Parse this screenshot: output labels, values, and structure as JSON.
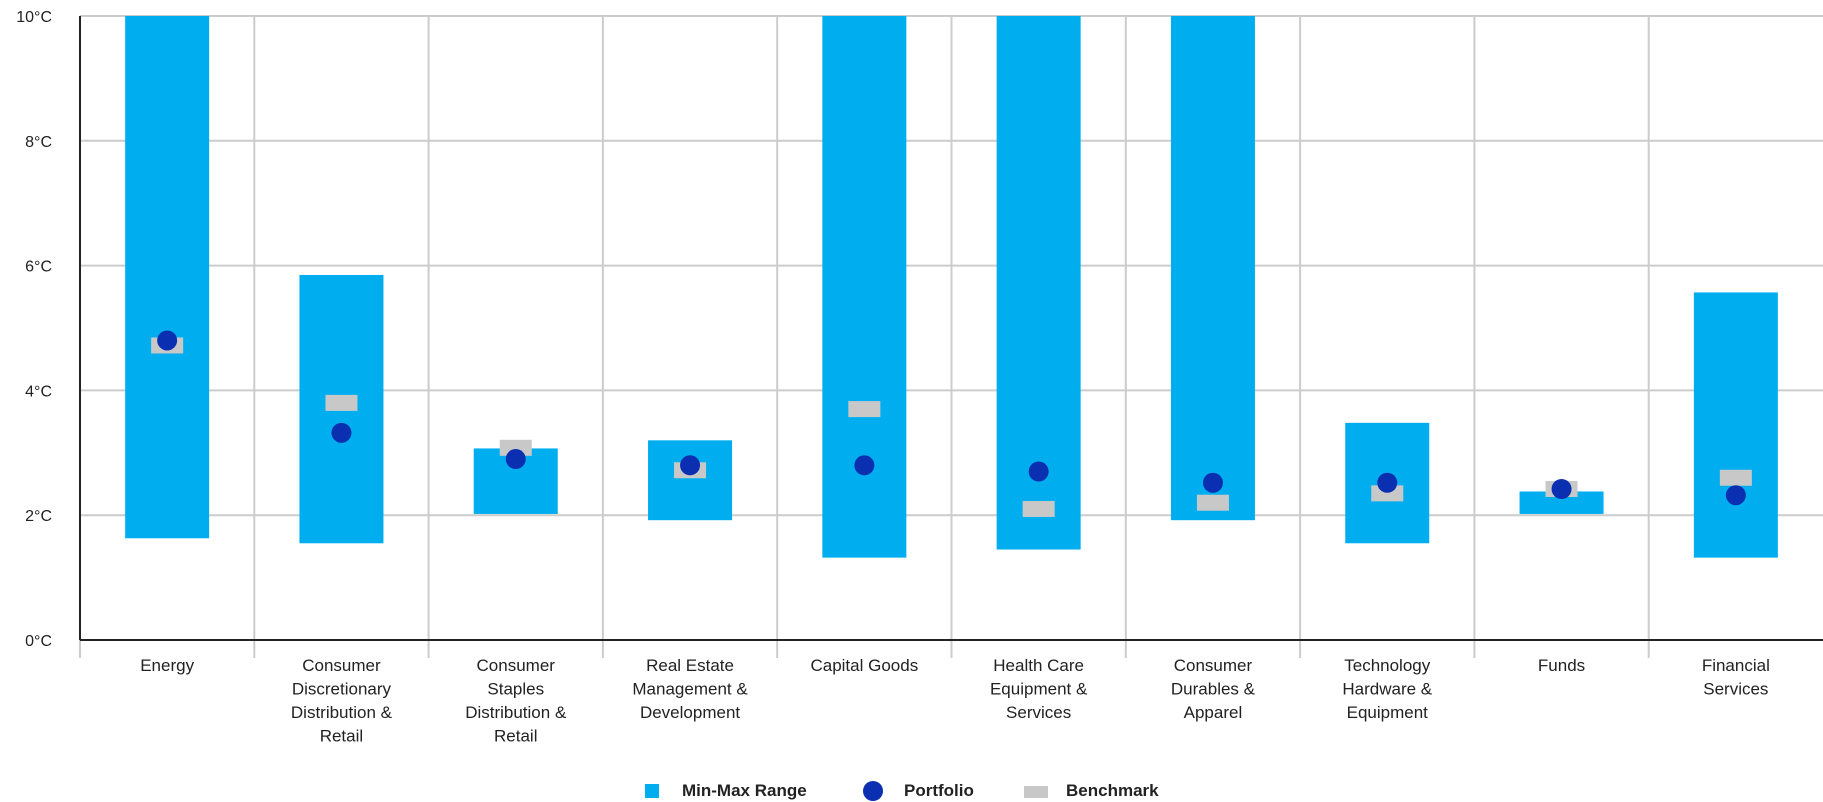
{
  "chart_data": {
    "type": "bar",
    "title": "",
    "xlabel": "",
    "ylabel": "",
    "ylim": [
      0,
      10
    ],
    "yticks": [
      "0°C",
      "2°C",
      "4°C",
      "6°C",
      "8°C",
      "10°C"
    ],
    "ytick_values": [
      0,
      2,
      4,
      6,
      8,
      10
    ],
    "grid": true,
    "legend_placement": "bottom-center",
    "categories": [
      [
        "Energy"
      ],
      [
        "Consumer",
        "Discretionary",
        "Distribution &",
        "Retail"
      ],
      [
        "Consumer",
        "Staples",
        "Distribution &",
        "Retail"
      ],
      [
        "Real Estate",
        "Management &",
        "Development"
      ],
      [
        "Capital Goods"
      ],
      [
        "Health Care",
        "Equipment &",
        "Services"
      ],
      [
        "Consumer",
        "Durables &",
        "Apparel"
      ],
      [
        "Technology",
        "Hardware &",
        "Equipment"
      ],
      [
        "Funds"
      ],
      [
        "Financial",
        "Services"
      ]
    ],
    "series": [
      {
        "name": "Min-Max Range",
        "kind": "range-bar",
        "color": "#00AEEF",
        "min": [
          1.63,
          1.55,
          2.02,
          1.92,
          1.32,
          1.45,
          1.92,
          1.55,
          2.02,
          1.32
        ],
        "max": [
          10,
          5.85,
          3.07,
          3.2,
          10,
          10,
          10,
          3.48,
          2.38,
          5.57
        ]
      },
      {
        "name": "Portfolio",
        "kind": "point",
        "color": "#0A2FB0",
        "values": [
          4.8,
          3.32,
          2.9,
          2.8,
          2.8,
          2.7,
          2.52,
          2.52,
          2.42,
          2.32
        ]
      },
      {
        "name": "Benchmark",
        "kind": "marker",
        "color": "#C8C8C8",
        "values": [
          4.72,
          3.8,
          3.08,
          2.72,
          3.7,
          2.1,
          2.2,
          2.35,
          2.42,
          2.6
        ]
      }
    ]
  }
}
